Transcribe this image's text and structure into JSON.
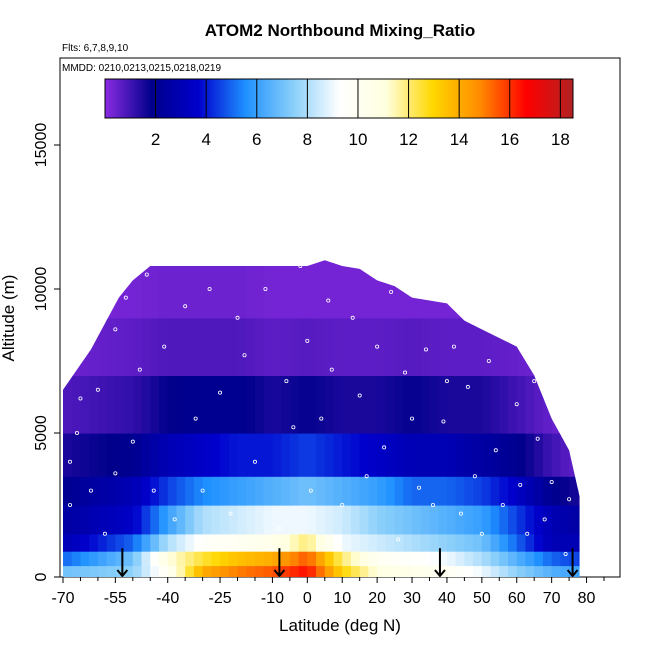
{
  "chart_data": {
    "type": "heatmap",
    "title": "ATOM2 Northbound Mixing_Ratio",
    "annotations": [
      "Flts: 6,7,8,9,10",
      "MMDD: 0210,0213,0215,0218,0219"
    ],
    "xlabel": "Latitude (deg N)",
    "ylabel": "Altitude (m)",
    "xlim": [
      -70,
      85
    ],
    "ylim": [
      0,
      17500
    ],
    "x_ticks": [
      -70,
      -55,
      -40,
      -25,
      -10,
      0,
      10,
      20,
      30,
      40,
      50,
      60,
      70,
      80
    ],
    "x_tick_labels": [
      "-70",
      "-55",
      "-40",
      "-25",
      "-10",
      "0",
      "10",
      "20",
      "30",
      "40",
      "50",
      "60",
      "70",
      "80"
    ],
    "y_ticks": [
      0,
      5000,
      10000,
      15000
    ],
    "y_tick_labels": [
      "0",
      "5000",
      "10000",
      "15000"
    ],
    "colorbar": {
      "range": [
        0,
        18.5
      ],
      "ticks": [
        2,
        4,
        6,
        8,
        10,
        12,
        14,
        16,
        18
      ],
      "tick_labels": [
        "2",
        "4",
        "6",
        "8",
        "10",
        "12",
        "14",
        "16",
        "18"
      ],
      "colors": [
        "#8a2be2",
        "#00008b",
        "#0000cd",
        "#1e90ff",
        "#87cefa",
        "#ffffff",
        "#ffffe0",
        "#ffd700",
        "#ff8c00",
        "#ff0000",
        "#b22222"
      ]
    },
    "top_altitude_profile": {
      "lat": [
        -70,
        -66,
        -62,
        -58,
        -54,
        -50,
        -45,
        -40,
        -35,
        -30,
        -25,
        -20,
        -15,
        -10,
        -5,
        0,
        5,
        10,
        15,
        20,
        25,
        30,
        35,
        40,
        45,
        50,
        55,
        60,
        65,
        70,
        75,
        78
      ],
      "alt": [
        6500,
        7200,
        7900,
        8800,
        9700,
        10300,
        10800,
        10800,
        10800,
        10800,
        10800,
        10800,
        10800,
        10800,
        10800,
        10800,
        11000,
        10800,
        10700,
        10300,
        10100,
        9700,
        9600,
        9500,
        8900,
        8600,
        8300,
        8000,
        7000,
        5500,
        4400,
        2800
      ]
    },
    "layers": [
      {
        "alt": [
          0,
          400
        ],
        "lat": [
          -70,
          -50,
          -40,
          -30,
          -20,
          -10,
          0,
          10,
          20,
          30,
          40,
          50,
          60,
          70,
          78
        ],
        "values": [
          7.0,
          7.5,
          10.0,
          14.0,
          15.0,
          15.5,
          16.5,
          13.0,
          11.0,
          10.5,
          10.0,
          9.0,
          7.5,
          6.5,
          6.0
        ]
      },
      {
        "alt": [
          400,
          900
        ],
        "lat": [
          -70,
          -50,
          -40,
          -30,
          -20,
          -10,
          0,
          10,
          20,
          30,
          40,
          50,
          60,
          70,
          78
        ],
        "values": [
          5.0,
          7.0,
          11.0,
          12.5,
          13.5,
          14.0,
          15.5,
          12.0,
          10.0,
          9.5,
          9.0,
          8.0,
          6.5,
          5.0,
          4.5
        ]
      },
      {
        "alt": [
          900,
          1500
        ],
        "lat": [
          -70,
          -50,
          -40,
          -30,
          -20,
          -10,
          0,
          10,
          20,
          30,
          40,
          50,
          60,
          70,
          78
        ],
        "values": [
          3.0,
          5.0,
          8.0,
          9.5,
          10.0,
          10.5,
          12.0,
          9.0,
          8.5,
          8.0,
          7.5,
          7.0,
          5.0,
          3.0,
          3.0
        ]
      },
      {
        "alt": [
          1500,
          2500
        ],
        "lat": [
          -70,
          -50,
          -40,
          -30,
          -20,
          -10,
          0,
          10,
          20,
          30,
          40,
          50,
          60,
          70,
          78
        ],
        "values": [
          2.5,
          3.5,
          6.0,
          8.0,
          8.5,
          9.0,
          9.0,
          8.5,
          7.5,
          7.0,
          6.5,
          6.0,
          4.5,
          3.0,
          2.5
        ]
      },
      {
        "alt": [
          2500,
          3500
        ],
        "lat": [
          -70,
          -50,
          -40,
          -30,
          -20,
          -10,
          0,
          10,
          20,
          30,
          40,
          50,
          60,
          70,
          78
        ],
        "values": [
          2.0,
          3.0,
          4.5,
          5.5,
          6.0,
          6.5,
          7.0,
          6.5,
          6.0,
          5.0,
          5.0,
          4.5,
          3.5,
          2.0,
          1.5
        ]
      },
      {
        "alt": [
          3500,
          5000
        ],
        "lat": [
          -70,
          -50,
          -40,
          -30,
          -20,
          -10,
          0,
          10,
          20,
          30,
          40,
          50,
          60,
          70,
          78
        ],
        "values": [
          1.5,
          2.0,
          3.0,
          3.5,
          4.0,
          4.0,
          4.5,
          4.0,
          3.5,
          3.0,
          3.0,
          2.5,
          2.0,
          1.0,
          0.5
        ]
      },
      {
        "alt": [
          5000,
          7000
        ],
        "lat": [
          -70,
          -50,
          -40,
          -30,
          -20,
          -10,
          0,
          10,
          20,
          30,
          40,
          50,
          60,
          70,
          78
        ],
        "values": [
          0.8,
          1.2,
          1.8,
          2.0,
          2.0,
          1.5,
          1.8,
          1.5,
          1.5,
          1.8,
          1.5,
          1.5,
          1.0,
          0.5,
          0.3
        ]
      },
      {
        "alt": [
          7000,
          9000
        ],
        "lat": [
          -70,
          -50,
          -40,
          -30,
          -20,
          -10,
          0,
          10,
          20,
          30,
          40,
          50,
          60,
          70,
          78
        ],
        "values": [
          0.4,
          0.6,
          0.8,
          0.8,
          0.8,
          0.6,
          0.7,
          0.6,
          0.6,
          0.7,
          0.6,
          0.6,
          0.5,
          0.3,
          0.2
        ]
      },
      {
        "alt": [
          9000,
          11500
        ],
        "lat": [
          -70,
          -50,
          -40,
          -30,
          -20,
          -10,
          0,
          10,
          20,
          30,
          40,
          50,
          60,
          70,
          78
        ],
        "values": [
          0.2,
          0.3,
          0.4,
          0.4,
          0.4,
          0.3,
          0.3,
          0.3,
          0.3,
          0.3,
          0.3,
          0.3,
          0.3,
          0.2,
          0.2
        ]
      }
    ],
    "sample_points": [
      [
        -68,
        4000
      ],
      [
        -68,
        2500
      ],
      [
        -66,
        5000
      ],
      [
        -65,
        6200
      ],
      [
        -62,
        3000
      ],
      [
        -60,
        6500
      ],
      [
        -58,
        1500
      ],
      [
        -55,
        3600
      ],
      [
        -55,
        8600
      ],
      [
        -52,
        9700
      ],
      [
        -50,
        4700
      ],
      [
        -48,
        7200
      ],
      [
        -46,
        10500
      ],
      [
        -44,
        3000
      ],
      [
        -41,
        8000
      ],
      [
        -38,
        2000
      ],
      [
        -35,
        9400
      ],
      [
        -32,
        5500
      ],
      [
        -30,
        3000
      ],
      [
        -28,
        10000
      ],
      [
        -25,
        6400
      ],
      [
        -22,
        2200
      ],
      [
        -20,
        9000
      ],
      [
        -18,
        7700
      ],
      [
        -15,
        4000
      ],
      [
        -12,
        10000
      ],
      [
        -10,
        1000
      ],
      [
        -8,
        1700
      ],
      [
        -6,
        6800
      ],
      [
        -4,
        5200
      ],
      [
        -2,
        10800
      ],
      [
        0,
        8200
      ],
      [
        1,
        3000
      ],
      [
        4,
        5500
      ],
      [
        6,
        9600
      ],
      [
        7,
        7200
      ],
      [
        8,
        1300
      ],
      [
        10,
        2500
      ],
      [
        11,
        11000
      ],
      [
        13,
        9000
      ],
      [
        15,
        6300
      ],
      [
        17,
        3500
      ],
      [
        20,
        8000
      ],
      [
        22,
        4500
      ],
      [
        24,
        9900
      ],
      [
        26,
        1300
      ],
      [
        28,
        7100
      ],
      [
        30,
        5500
      ],
      [
        32,
        3100
      ],
      [
        34,
        7900
      ],
      [
        36,
        2500
      ],
      [
        39,
        5400
      ],
      [
        40,
        6800
      ],
      [
        42,
        8000
      ],
      [
        44,
        2200
      ],
      [
        46,
        6600
      ],
      [
        48,
        3500
      ],
      [
        50,
        1500
      ],
      [
        52,
        7500
      ],
      [
        54,
        4400
      ],
      [
        56,
        2500
      ],
      [
        58,
        8300
      ],
      [
        60,
        6000
      ],
      [
        61,
        3200
      ],
      [
        63,
        1500
      ],
      [
        65,
        6800
      ],
      [
        66,
        4800
      ],
      [
        68,
        2000
      ],
      [
        70,
        3300
      ],
      [
        72,
        5500
      ],
      [
        74,
        800
      ],
      [
        75,
        2700
      ]
    ],
    "flight_arrows_lat": [
      -53,
      -8,
      38,
      76
    ]
  }
}
